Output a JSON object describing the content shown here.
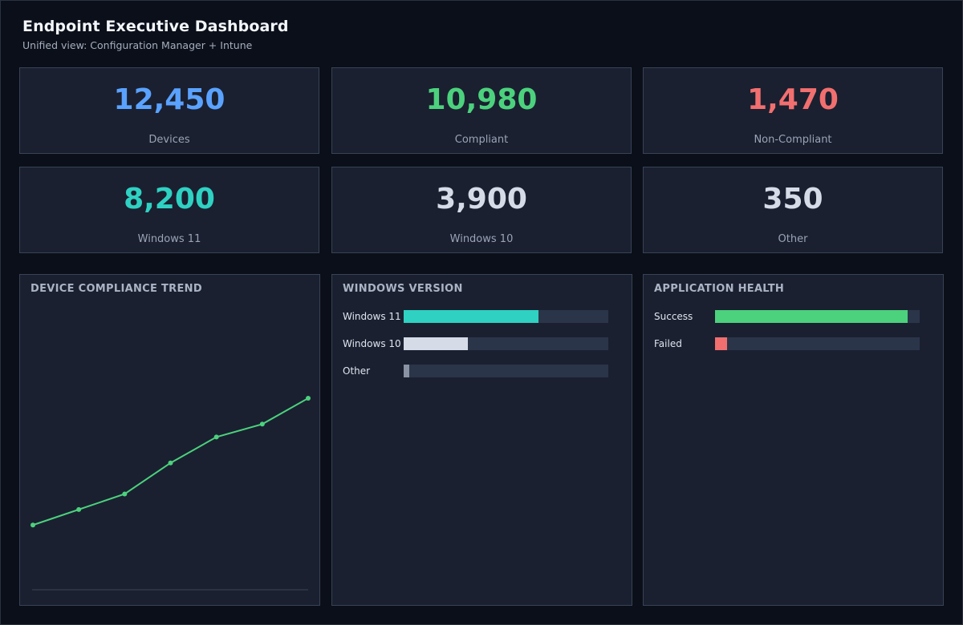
{
  "header": {
    "title": "Endpoint Executive Dashboard",
    "subtitle": "Unified view: Configuration Manager + Intune"
  },
  "kpis": [
    {
      "value": "12,450",
      "label": "Devices",
      "color": "#5aa2ff"
    },
    {
      "value": "10,980",
      "label": "Compliant",
      "color": "#4cd17d"
    },
    {
      "value": "1,470",
      "label": "Non-Compliant",
      "color": "#f26f6f"
    },
    {
      "value": "8,200",
      "label": "Windows 11",
      "color": "#2fd1c2"
    },
    {
      "value": "3,900",
      "label": "Windows 10",
      "color": "#d5dce8"
    },
    {
      "value": "350",
      "label": "Other",
      "color": "#d5dce8"
    }
  ],
  "panels": {
    "trend": {
      "title": "DEVICE COMPLIANCE TREND"
    },
    "windows_version": {
      "title": "WINDOWS VERSION",
      "bars": [
        {
          "label": "Windows 11",
          "value": 8200,
          "max": 12450,
          "color": "#2fd1c2"
        },
        {
          "label": "Windows 10",
          "value": 3900,
          "max": 12450,
          "color": "#d5dce8"
        },
        {
          "label": "Other",
          "value": 350,
          "max": 12450,
          "color": "#8a93a3"
        }
      ]
    },
    "app_health": {
      "title": "APPLICATION HEALTH",
      "bars": [
        {
          "label": "Success",
          "fraction": 0.94,
          "color": "#4cd17d"
        },
        {
          "label": "Failed",
          "fraction": 0.06,
          "color": "#f26f6f"
        }
      ]
    }
  },
  "chart_data": {
    "type": "line",
    "title": "DEVICE COMPLIANCE TREND",
    "x": [
      1,
      2,
      3,
      4,
      5,
      6,
      7
    ],
    "series": [
      {
        "values": [
          25,
          31,
          37,
          49,
          59,
          64,
          74
        ],
        "color": "#4cd17d"
      }
    ],
    "ylim": [
      0,
      100
    ],
    "grid": false
  }
}
